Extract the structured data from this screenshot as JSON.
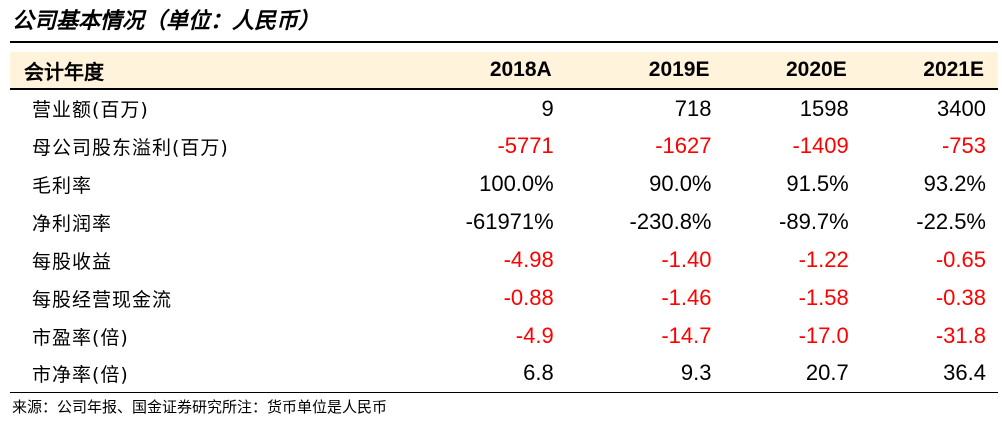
{
  "title": "公司基本情况（单位：人民币）",
  "table": {
    "headers": [
      "会计年度",
      "2018A",
      "2019E",
      "2020E",
      "2021E"
    ],
    "rows": [
      {
        "label": "营业额(百万)",
        "values": [
          "9",
          "718",
          "1598",
          "3400"
        ],
        "negative": [
          false,
          false,
          false,
          false
        ]
      },
      {
        "label": "母公司股东溢利(百万)",
        "values": [
          "-5771",
          "-1627",
          "-1409",
          "-753"
        ],
        "negative": [
          true,
          true,
          true,
          true
        ]
      },
      {
        "label": "毛利率",
        "values": [
          "100.0%",
          "90.0%",
          "91.5%",
          "93.2%"
        ],
        "negative": [
          false,
          false,
          false,
          false
        ]
      },
      {
        "label": "净利润率",
        "values": [
          "-61971%",
          "-230.8%",
          "-89.7%",
          "-22.5%"
        ],
        "negative": [
          false,
          false,
          false,
          false
        ]
      },
      {
        "label": "每股收益",
        "values": [
          "-4.98",
          "-1.40",
          "-1.22",
          "-0.65"
        ],
        "negative": [
          true,
          true,
          true,
          true
        ]
      },
      {
        "label": "每股经营现金流",
        "values": [
          "-0.88",
          "-1.46",
          "-1.58",
          "-0.38"
        ],
        "negative": [
          true,
          true,
          true,
          true
        ]
      },
      {
        "label": "市盈率(倍)",
        "values": [
          "-4.9",
          "-14.7",
          "-17.0",
          "-31.8"
        ],
        "negative": [
          true,
          true,
          true,
          true
        ]
      },
      {
        "label": "市净率(倍)",
        "values": [
          "6.8",
          "9.3",
          "20.7",
          "36.4"
        ],
        "negative": [
          false,
          false,
          false,
          false
        ]
      }
    ]
  },
  "source": "来源：公司年报、国金证券研究所注：货币单位是人民币",
  "colors": {
    "negative": "#ff0000",
    "header_bg": "#fff3dc"
  }
}
